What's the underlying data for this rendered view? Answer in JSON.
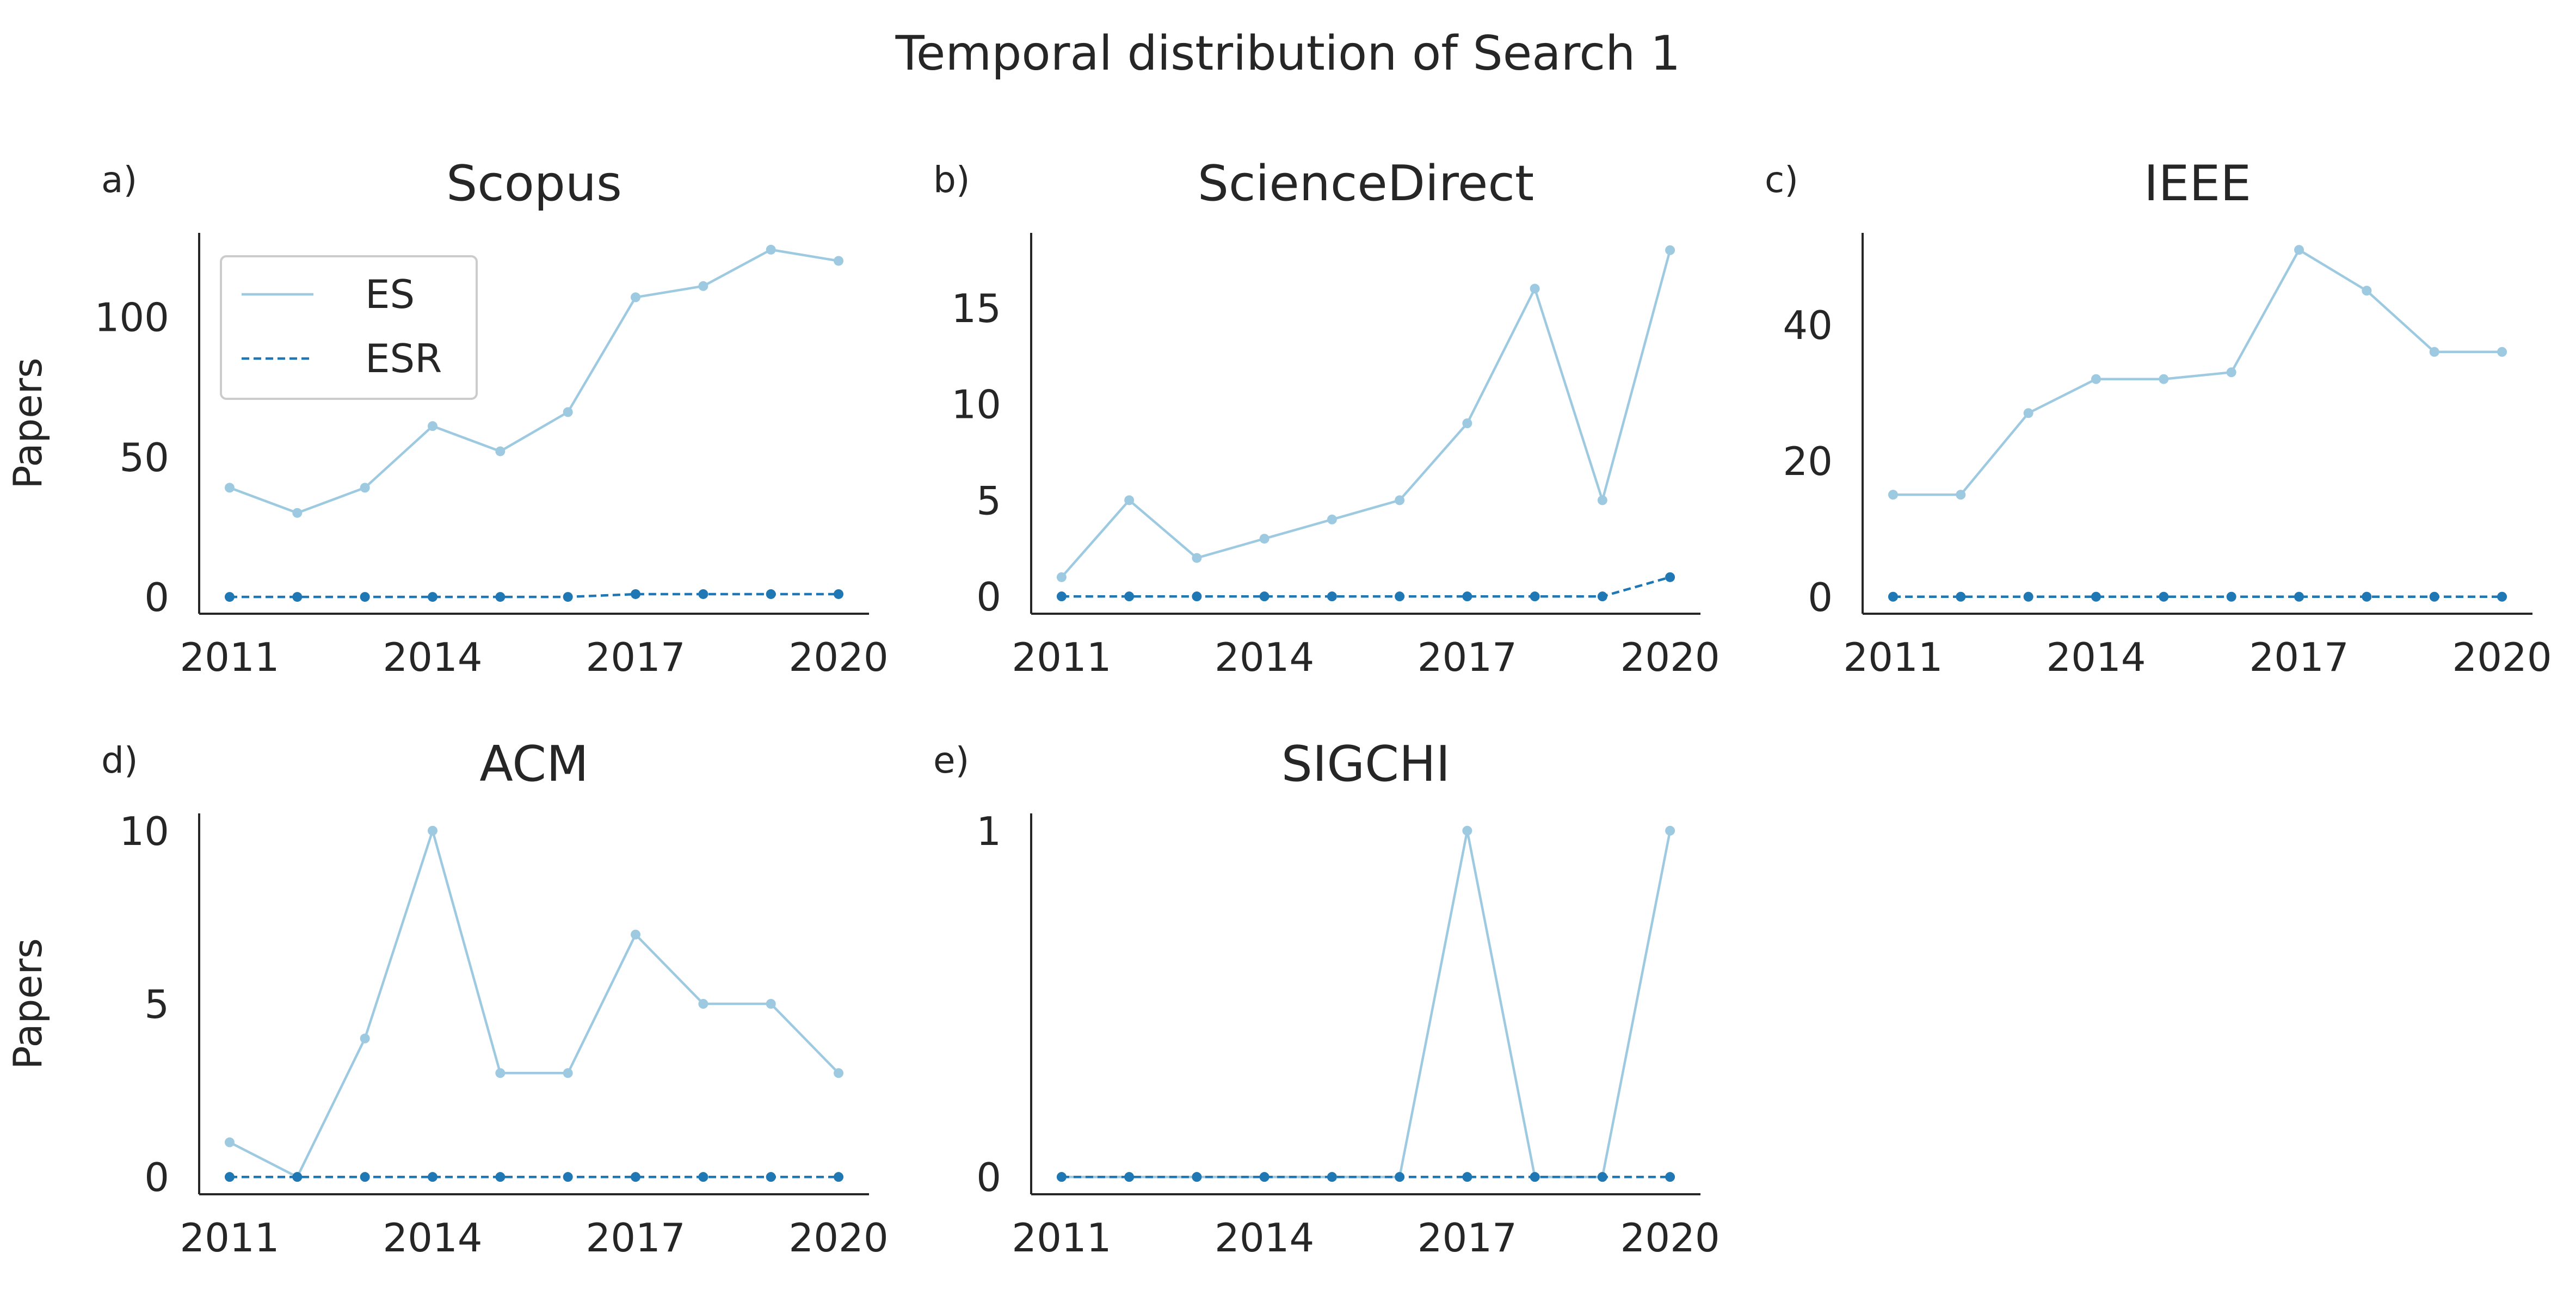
{
  "figure_title": "Temporal distribution of Search 1",
  "colors": {
    "ES": "#9ecae1",
    "ESR": "#1f77b4",
    "axis": "#262626",
    "legend_border": "#cccccc"
  },
  "chart_data": [
    {
      "type": "line",
      "panel_label": "a)",
      "title": "Scopus",
      "xlabel": "",
      "ylabel": "Papers",
      "x": [
        2011,
        2012,
        2013,
        2014,
        2015,
        2016,
        2017,
        2018,
        2019,
        2020
      ],
      "x_ticks": [
        2011,
        2014,
        2017,
        2020
      ],
      "y_ticks": [
        0,
        50,
        100
      ],
      "ylim": [
        -6,
        130
      ],
      "legend": {
        "location": "upper-left",
        "entries": [
          "ES",
          "ESR"
        ]
      },
      "series": [
        {
          "name": "ES",
          "style": "solid",
          "values": [
            39,
            30,
            39,
            61,
            52,
            66,
            107,
            111,
            124,
            120
          ]
        },
        {
          "name": "ESR",
          "style": "dashed",
          "values": [
            0,
            0,
            0,
            0,
            0,
            0,
            1,
            1,
            1,
            1
          ]
        }
      ]
    },
    {
      "type": "line",
      "panel_label": "b)",
      "title": "ScienceDirect",
      "xlabel": "",
      "ylabel": "",
      "x": [
        2011,
        2012,
        2013,
        2014,
        2015,
        2016,
        2017,
        2018,
        2019,
        2020
      ],
      "x_ticks": [
        2011,
        2014,
        2017,
        2020
      ],
      "y_ticks": [
        0,
        5,
        10,
        15
      ],
      "ylim": [
        -0.9,
        18.9
      ],
      "series": [
        {
          "name": "ES",
          "style": "solid",
          "values": [
            1,
            5,
            2,
            3,
            4,
            5,
            9,
            16,
            5,
            18
          ]
        },
        {
          "name": "ESR",
          "style": "dashed",
          "values": [
            0,
            0,
            0,
            0,
            0,
            0,
            0,
            0,
            0,
            1
          ]
        }
      ]
    },
    {
      "type": "line",
      "panel_label": "c)",
      "title": "IEEE",
      "xlabel": "",
      "ylabel": "",
      "x": [
        2011,
        2012,
        2013,
        2014,
        2015,
        2016,
        2017,
        2018,
        2019,
        2020
      ],
      "x_ticks": [
        2011,
        2014,
        2017,
        2020
      ],
      "y_ticks": [
        0,
        20,
        40
      ],
      "ylim": [
        -2.5,
        53.5
      ],
      "series": [
        {
          "name": "ES",
          "style": "solid",
          "values": [
            15,
            15,
            27,
            32,
            32,
            33,
            51,
            45,
            36,
            36
          ]
        },
        {
          "name": "ESR",
          "style": "dashed",
          "values": [
            0,
            0,
            0,
            0,
            0,
            0,
            0,
            0,
            0,
            0
          ]
        }
      ]
    },
    {
      "type": "line",
      "panel_label": "d)",
      "title": "ACM",
      "xlabel": "",
      "ylabel": "Papers",
      "x": [
        2011,
        2012,
        2013,
        2014,
        2015,
        2016,
        2017,
        2018,
        2019,
        2020
      ],
      "x_ticks": [
        2011,
        2014,
        2017,
        2020
      ],
      "y_ticks": [
        0,
        5,
        10
      ],
      "ylim": [
        -0.5,
        10.5
      ],
      "series": [
        {
          "name": "ES",
          "style": "solid",
          "values": [
            1,
            0,
            4,
            10,
            3,
            3,
            7,
            5,
            5,
            3
          ]
        },
        {
          "name": "ESR",
          "style": "dashed",
          "values": [
            0,
            0,
            0,
            0,
            0,
            0,
            0,
            0,
            0,
            0
          ]
        }
      ]
    },
    {
      "type": "line",
      "panel_label": "e)",
      "title": "SIGCHI",
      "xlabel": "",
      "ylabel": "",
      "x": [
        2011,
        2012,
        2013,
        2014,
        2015,
        2016,
        2017,
        2018,
        2019,
        2020
      ],
      "x_ticks": [
        2011,
        2014,
        2017,
        2020
      ],
      "y_ticks": [
        0,
        1
      ],
      "ylim": [
        -0.05,
        1.05
      ],
      "series": [
        {
          "name": "ES",
          "style": "solid",
          "values": [
            0,
            0,
            0,
            0,
            0,
            0,
            1,
            0,
            0,
            1
          ]
        },
        {
          "name": "ESR",
          "style": "dashed",
          "values": [
            0,
            0,
            0,
            0,
            0,
            0,
            0,
            0,
            0,
            0
          ]
        }
      ]
    }
  ]
}
